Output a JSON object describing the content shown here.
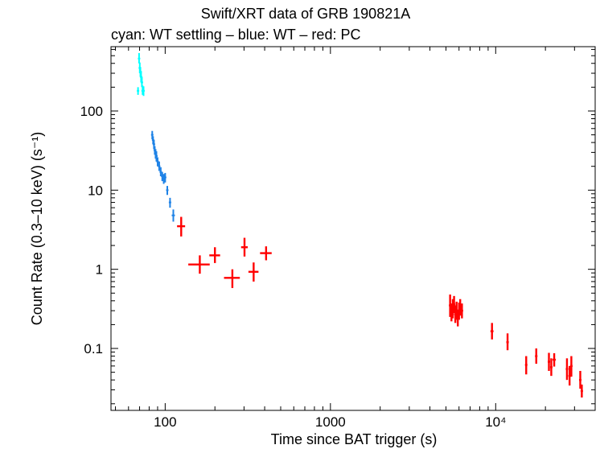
{
  "chart_data": {
    "type": "scatter",
    "title": "Swift/XRT data of GRB 190821A",
    "subtitle": "cyan: WT settling – blue: WT – red: PC",
    "xlabel": "Time since BAT trigger (s)",
    "ylabel": "Count Rate (0.3–10 keV) (s⁻¹)",
    "xscale": "log",
    "yscale": "log",
    "xlim": [
      47,
      40000
    ],
    "ylim": [
      0.0165,
      650
    ],
    "x_tick_labels": [
      {
        "value": 100,
        "label": "100"
      },
      {
        "value": 1000,
        "label": "1000"
      },
      {
        "value": 10000,
        "label": "10⁴"
      }
    ],
    "y_tick_labels": [
      {
        "value": 0.1,
        "label": "0.1"
      },
      {
        "value": 1,
        "label": "1"
      },
      {
        "value": 10,
        "label": "10"
      },
      {
        "value": 100,
        "label": "100"
      }
    ],
    "series": [
      {
        "name": "WT settling",
        "color": "#00ffff",
        "points": [
          {
            "x": 68.5,
            "y": 180,
            "xerr": 0.3,
            "ylo": 160,
            "yhi": 200
          },
          {
            "x": 69.5,
            "y": 460,
            "xerr": 0.3,
            "ylo": 400,
            "yhi": 540
          },
          {
            "x": 70.2,
            "y": 350,
            "xerr": 0.3,
            "ylo": 300,
            "yhi": 410
          },
          {
            "x": 70.8,
            "y": 310,
            "xerr": 0.3,
            "ylo": 270,
            "yhi": 360
          },
          {
            "x": 71.5,
            "y": 270,
            "xerr": 0.3,
            "ylo": 230,
            "yhi": 320
          },
          {
            "x": 72.3,
            "y": 230,
            "xerr": 0.3,
            "ylo": 200,
            "yhi": 270
          },
          {
            "x": 73.0,
            "y": 180,
            "xerr": 0.3,
            "ylo": 160,
            "yhi": 210
          },
          {
            "x": 74.0,
            "y": 180,
            "xerr": 0.4,
            "ylo": 155,
            "yhi": 205
          }
        ]
      },
      {
        "name": "WT",
        "color": "#1e82e6",
        "points": [
          {
            "x": 83.5,
            "y": 50,
            "xerr": 0.5,
            "ylo": 44,
            "yhi": 56
          },
          {
            "x": 84.5,
            "y": 43,
            "xerr": 0.5,
            "ylo": 38,
            "yhi": 48
          },
          {
            "x": 85.5,
            "y": 38,
            "xerr": 0.5,
            "ylo": 33,
            "yhi": 43
          },
          {
            "x": 86.5,
            "y": 32,
            "xerr": 0.5,
            "ylo": 28,
            "yhi": 36
          },
          {
            "x": 87.5,
            "y": 29,
            "xerr": 0.5,
            "ylo": 25,
            "yhi": 33
          },
          {
            "x": 88.5,
            "y": 27,
            "xerr": 0.5,
            "ylo": 23,
            "yhi": 31
          },
          {
            "x": 90.0,
            "y": 23,
            "xerr": 0.7,
            "ylo": 20,
            "yhi": 26
          },
          {
            "x": 92.0,
            "y": 20,
            "xerr": 0.8,
            "ylo": 17.5,
            "yhi": 23
          },
          {
            "x": 94.0,
            "y": 17,
            "xerr": 0.8,
            "ylo": 15,
            "yhi": 19.5
          },
          {
            "x": 96.0,
            "y": 15,
            "xerr": 0.8,
            "ylo": 13,
            "yhi": 17
          },
          {
            "x": 98.0,
            "y": 14,
            "xerr": 0.8,
            "ylo": 12,
            "yhi": 16
          },
          {
            "x": 100.0,
            "y": 14.5,
            "xerr": 1.0,
            "ylo": 12.5,
            "yhi": 16.5
          },
          {
            "x": 103.0,
            "y": 10,
            "xerr": 1.5,
            "ylo": 8.7,
            "yhi": 11.3
          },
          {
            "x": 107.0,
            "y": 7.0,
            "xerr": 1.8,
            "ylo": 6.0,
            "yhi": 8.0
          },
          {
            "x": 112.0,
            "y": 4.8,
            "xerr": 2.5,
            "ylo": 4.0,
            "yhi": 5.7
          }
        ]
      },
      {
        "name": "PC",
        "color": "#ff0000",
        "points": [
          {
            "x": 125,
            "y": 3.5,
            "xerr": 7,
            "ylo": 2.6,
            "yhi": 4.6
          },
          {
            "x": 162,
            "y": 1.15,
            "xerr": 24,
            "ylo": 0.88,
            "yhi": 1.5
          },
          {
            "x": 200,
            "y": 1.5,
            "xerr": 15,
            "ylo": 1.2,
            "yhi": 1.9
          },
          {
            "x": 255,
            "y": 0.78,
            "xerr": 28,
            "ylo": 0.58,
            "yhi": 1.0
          },
          {
            "x": 302,
            "y": 1.9,
            "xerr": 14,
            "ylo": 1.45,
            "yhi": 2.5
          },
          {
            "x": 343,
            "y": 0.93,
            "xerr": 24,
            "ylo": 0.7,
            "yhi": 1.22
          },
          {
            "x": 408,
            "y": 1.6,
            "xerr": 33,
            "ylo": 1.3,
            "yhi": 1.95
          },
          {
            "x": 5300,
            "y": 0.35,
            "xerr": 50,
            "ylo": 0.25,
            "yhi": 0.48
          },
          {
            "x": 5400,
            "y": 0.28,
            "xerr": 50,
            "ylo": 0.22,
            "yhi": 0.37
          },
          {
            "x": 5500,
            "y": 0.32,
            "xerr": 50,
            "ylo": 0.24,
            "yhi": 0.42
          },
          {
            "x": 5600,
            "y": 0.36,
            "xerr": 50,
            "ylo": 0.28,
            "yhi": 0.46
          },
          {
            "x": 5700,
            "y": 0.27,
            "xerr": 50,
            "ylo": 0.21,
            "yhi": 0.35
          },
          {
            "x": 5800,
            "y": 0.3,
            "xerr": 50,
            "ylo": 0.23,
            "yhi": 0.39
          },
          {
            "x": 5900,
            "y": 0.24,
            "xerr": 50,
            "ylo": 0.19,
            "yhi": 0.31
          },
          {
            "x": 6000,
            "y": 0.3,
            "xerr": 50,
            "ylo": 0.23,
            "yhi": 0.38
          },
          {
            "x": 6100,
            "y": 0.33,
            "xerr": 60,
            "ylo": 0.26,
            "yhi": 0.42
          },
          {
            "x": 6250,
            "y": 0.3,
            "xerr": 80,
            "ylo": 0.24,
            "yhi": 0.37
          },
          {
            "x": 9500,
            "y": 0.165,
            "xerr": 200,
            "ylo": 0.13,
            "yhi": 0.21
          },
          {
            "x": 11800,
            "y": 0.12,
            "xerr": 200,
            "ylo": 0.095,
            "yhi": 0.155
          },
          {
            "x": 15300,
            "y": 0.062,
            "xerr": 250,
            "ylo": 0.047,
            "yhi": 0.08
          },
          {
            "x": 17600,
            "y": 0.08,
            "xerr": 300,
            "ylo": 0.064,
            "yhi": 0.1
          },
          {
            "x": 21000,
            "y": 0.068,
            "xerr": 300,
            "ylo": 0.052,
            "yhi": 0.088
          },
          {
            "x": 21700,
            "y": 0.058,
            "xerr": 300,
            "ylo": 0.045,
            "yhi": 0.075
          },
          {
            "x": 22600,
            "y": 0.072,
            "xerr": 500,
            "ylo": 0.059,
            "yhi": 0.087
          },
          {
            "x": 27000,
            "y": 0.055,
            "xerr": 400,
            "ylo": 0.04,
            "yhi": 0.075
          },
          {
            "x": 28000,
            "y": 0.045,
            "xerr": 400,
            "ylo": 0.034,
            "yhi": 0.06
          },
          {
            "x": 28700,
            "y": 0.06,
            "xerr": 400,
            "ylo": 0.044,
            "yhi": 0.08
          },
          {
            "x": 32500,
            "y": 0.04,
            "xerr": 400,
            "ylo": 0.031,
            "yhi": 0.052
          },
          {
            "x": 33200,
            "y": 0.029,
            "xerr": 400,
            "ylo": 0.024,
            "yhi": 0.035
          }
        ]
      }
    ]
  }
}
